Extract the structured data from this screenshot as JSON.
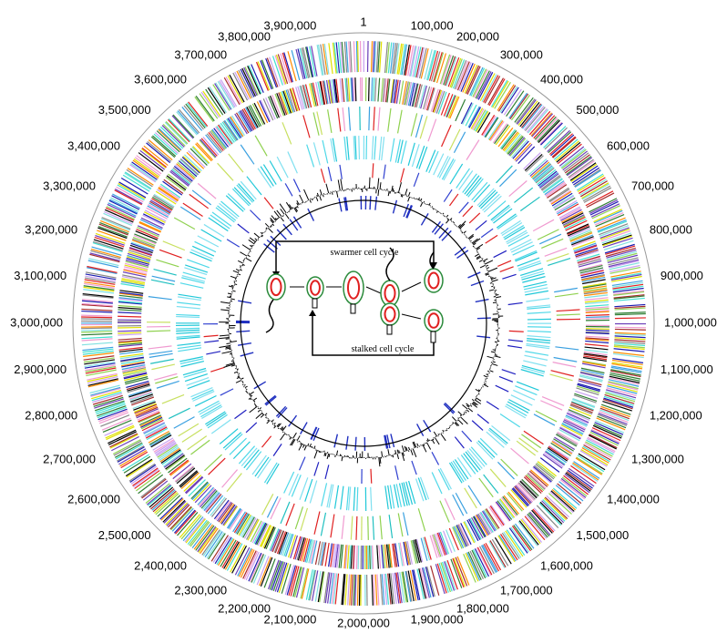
{
  "position_labels": [
    "1",
    "100,000",
    "200,000",
    "300,000",
    "400,000",
    "500,000",
    "600,000",
    "700,000",
    "800,000",
    "900,000",
    "1,000,000",
    "1,100,000",
    "1,200,000",
    "1,300,000",
    "1,400,000",
    "1,500,000",
    "1,600,000",
    "1,700,000",
    "1,800,000",
    "1,900,000",
    "2,000,000",
    "2,100,000",
    "2,200,000",
    "2,300,000",
    "2,400,000",
    "2,500,000",
    "2,600,000",
    "2,700,000",
    "2,800,000",
    "2,900,000",
    "3,000,000",
    "3,100,000",
    "3,200,000",
    "3,300,000",
    "3,400,000",
    "3,500,000",
    "3,600,000",
    "3,700,000",
    "3,800,000",
    "3,900,000"
  ],
  "cell_cycle": {
    "swarmer_label": "swarmer cell cycle",
    "stalked_label": "stalked cell cycle"
  }
}
